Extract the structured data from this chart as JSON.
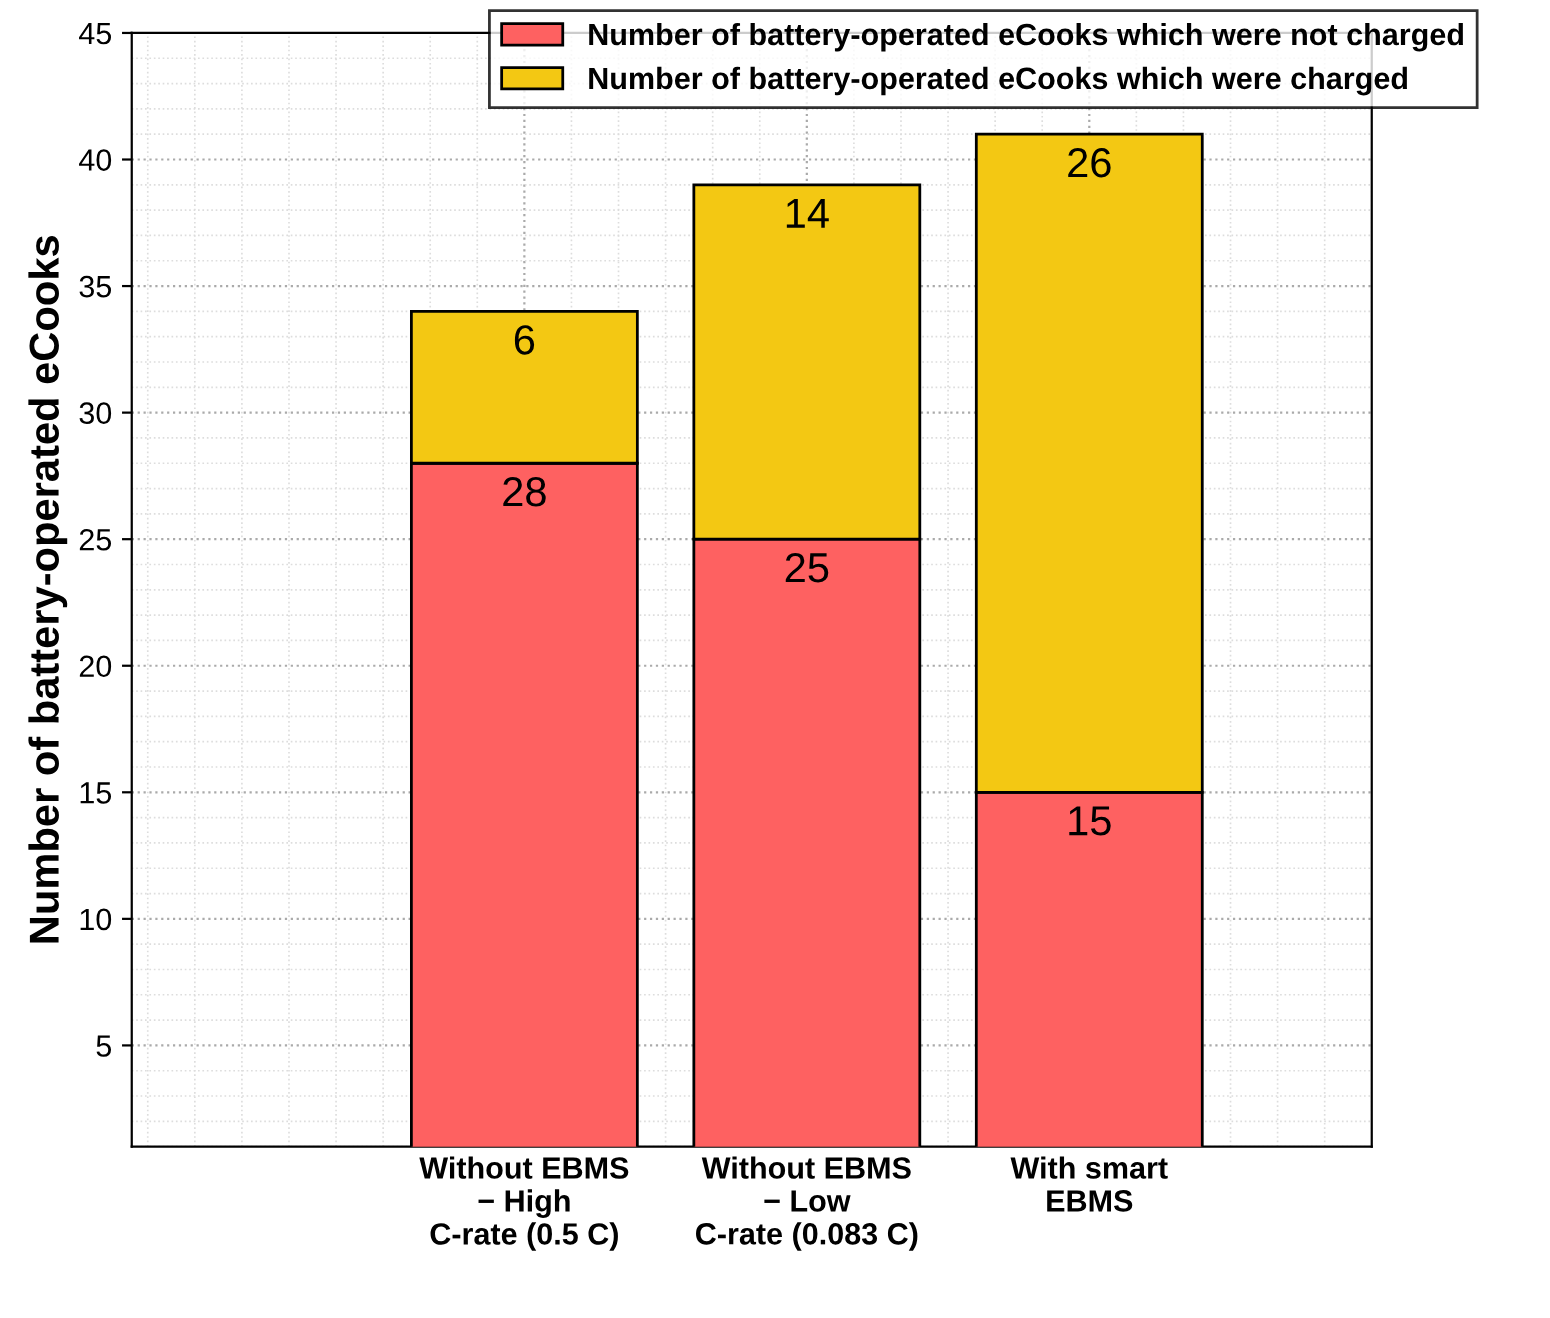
{
  "chart_data": {
    "type": "bar",
    "stacked": true,
    "ylabel": "Number of battery-operated eCooks",
    "categories": [
      "Without EBMS\n− High\nC-rate (0.5 C)",
      "Without EBMS\n− Low\nC-rate (0.083 C)",
      "With smart\nEBMS"
    ],
    "series": [
      {
        "name": "Number of battery-operated eCooks which were not charged",
        "color": "#fe6161",
        "values": [
          28,
          25,
          15
        ]
      },
      {
        "name": "Number of battery-operated eCooks which were charged",
        "color": "#f3c813",
        "values": [
          6,
          14,
          26
        ]
      }
    ],
    "data_labels": true,
    "ylim": [
      1,
      45
    ],
    "yticks": [
      5,
      10,
      15,
      20,
      25,
      30,
      35,
      40,
      45
    ],
    "grid": true,
    "legend": "top right"
  }
}
